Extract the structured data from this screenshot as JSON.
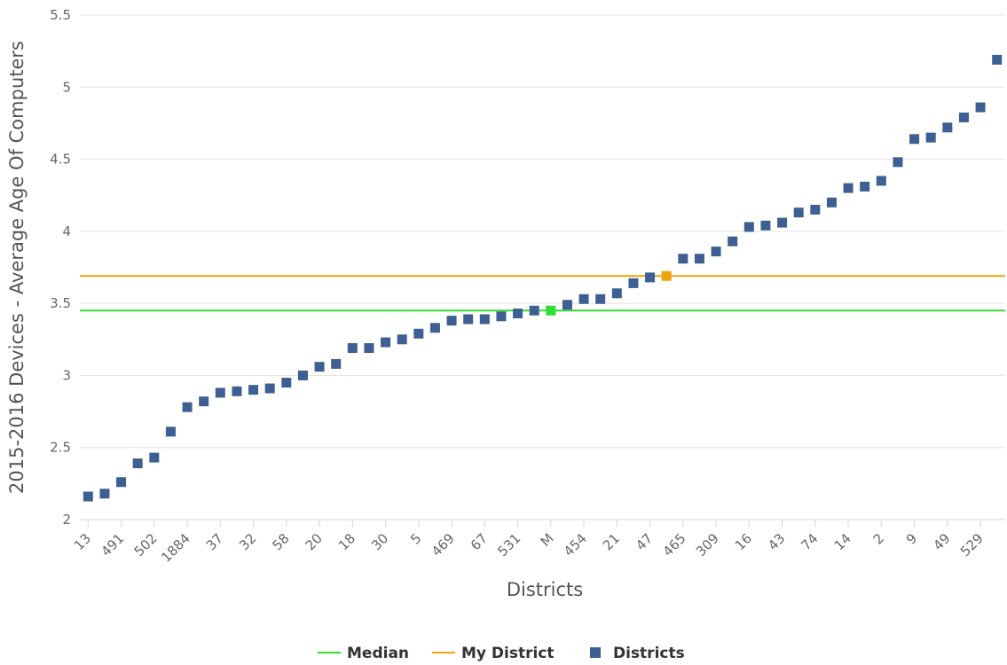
{
  "chart_data": {
    "type": "scatter",
    "xlabel": "Districts",
    "ylabel": "2015-2016 Devices - Average Age Of Computers",
    "ylim": [
      2,
      5.5
    ],
    "yticks": [
      2,
      2.5,
      3,
      3.5,
      4,
      4.5,
      5,
      5.5
    ],
    "xtick_labels": [
      "13",
      "491",
      "502",
      "1884",
      "37",
      "32",
      "58",
      "20",
      "18",
      "30",
      "5",
      "469",
      "67",
      "531",
      "M",
      "454",
      "21",
      "47",
      "465",
      "309",
      "16",
      "43",
      "74",
      "14",
      "2",
      "9",
      "49",
      "529"
    ],
    "categories": [
      "13",
      "",
      "491",
      "",
      "502",
      "",
      "1884",
      "",
      "37",
      "",
      "32",
      "",
      "58",
      "",
      "20",
      "",
      "18",
      "",
      "30",
      "",
      "5",
      "",
      "469",
      "",
      "67",
      "",
      "531",
      "",
      "M",
      "",
      "454",
      "",
      "21",
      "",
      "47",
      "",
      "465",
      "",
      "309",
      "",
      "16",
      "",
      "43",
      "",
      "74",
      "",
      "14",
      "",
      "2",
      "",
      "9",
      "",
      "49",
      "",
      "529",
      ""
    ],
    "series": [
      {
        "name": "Districts",
        "kind": "scatter",
        "color": "#3d5f93",
        "values": [
          2.16,
          2.18,
          2.26,
          2.39,
          2.43,
          2.61,
          2.78,
          2.82,
          2.88,
          2.89,
          2.9,
          2.91,
          2.95,
          3.0,
          3.06,
          3.08,
          3.19,
          3.19,
          3.23,
          3.25,
          3.29,
          3.33,
          3.38,
          3.39,
          3.39,
          3.41,
          3.43,
          3.45,
          null,
          3.49,
          3.53,
          3.53,
          3.57,
          3.64,
          3.68,
          null,
          3.81,
          3.81,
          3.86,
          3.93,
          4.03,
          4.04,
          4.06,
          4.13,
          4.15,
          4.2,
          4.3,
          4.31,
          4.35,
          4.48,
          4.64,
          4.65,
          4.72,
          4.79,
          4.86,
          5.19
        ]
      },
      {
        "name": "Median",
        "kind": "line",
        "color": "#33dd33",
        "value": 3.45
      },
      {
        "name": "My District",
        "kind": "line",
        "color": "#f0a30a",
        "value": 3.69
      }
    ],
    "highlight_points": [
      {
        "category_index": 28,
        "value": 3.45,
        "color": "#33dd33"
      },
      {
        "category_index": 35,
        "value": 3.69,
        "color": "#f0a30a"
      }
    ],
    "grid": true,
    "legend_position": "bottom-center"
  }
}
